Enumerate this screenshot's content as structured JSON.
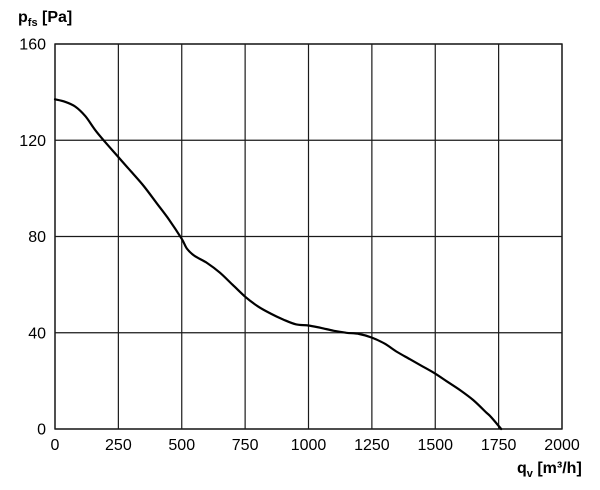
{
  "chart_data": {
    "type": "line",
    "ylabel": {
      "main": "p",
      "sub": "fs",
      "unit": " [Pa]"
    },
    "xlabel": {
      "main": "q",
      "sub": "v",
      "unit": " [m³/h]"
    },
    "xlim": [
      0,
      2000
    ],
    "ylim": [
      0,
      160
    ],
    "x_ticks": [
      0,
      250,
      500,
      750,
      1000,
      1250,
      1500,
      1750,
      2000
    ],
    "y_ticks": [
      0,
      40,
      80,
      120,
      160
    ],
    "grid": true,
    "colors": {
      "line": "#000000",
      "grid": "#1a1a1a"
    },
    "series": [
      {
        "x": [
          0,
          40,
          80,
          120,
          160,
          200,
          250,
          300,
          350,
          400,
          450,
          500,
          520,
          550,
          600,
          650,
          700,
          750,
          800,
          850,
          900,
          950,
          1000,
          1050,
          1100,
          1150,
          1200,
          1250,
          1300,
          1350,
          1400,
          1450,
          1500,
          1550,
          1600,
          1650,
          1700,
          1720,
          1760
        ],
        "y": [
          137,
          136,
          134,
          130,
          124,
          119,
          113,
          107,
          101,
          94,
          87,
          79,
          75,
          72,
          69,
          65,
          60,
          55,
          51,
          48,
          45.5,
          43.5,
          43,
          42,
          40.8,
          40,
          39.5,
          38,
          35.5,
          32,
          29,
          26,
          23,
          19.5,
          16,
          12,
          7,
          5,
          0
        ]
      }
    ]
  }
}
